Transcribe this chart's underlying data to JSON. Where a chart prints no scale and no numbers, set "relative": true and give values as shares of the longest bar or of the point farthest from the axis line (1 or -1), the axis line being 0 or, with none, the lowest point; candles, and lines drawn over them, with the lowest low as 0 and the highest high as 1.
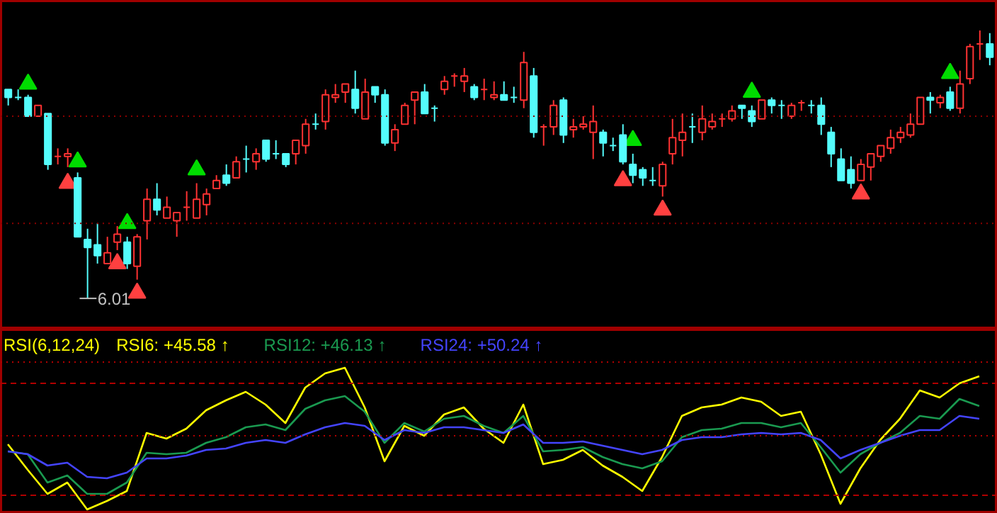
{
  "chart_data": [
    {
      "type": "candlestick",
      "relative": true,
      "categories": [
        null,
        null,
        null,
        null,
        null,
        null,
        null,
        null,
        null,
        null,
        null,
        null,
        null,
        null,
        null,
        null,
        null,
        null,
        null,
        null,
        null,
        null,
        null,
        null,
        null,
        null,
        null,
        null,
        null,
        null,
        null,
        null,
        null,
        null,
        null,
        null,
        null,
        null,
        null,
        null,
        null,
        null,
        null,
        null,
        null,
        null,
        null,
        null,
        null,
        null,
        null,
        null,
        null,
        null,
        null,
        null,
        null,
        null,
        null,
        null,
        null,
        null,
        null,
        null,
        null,
        null,
        null,
        null,
        null,
        null,
        null,
        null,
        null,
        null,
        null,
        null,
        null,
        null,
        null,
        null,
        null,
        null,
        null,
        null,
        null,
        null,
        null,
        null,
        null,
        null,
        null,
        null,
        null,
        null,
        null,
        null,
        null,
        null,
        null,
        null
      ],
      "ohlc": [
        [
          0.78,
          0.78,
          0.72,
          0.75
        ],
        [
          0.75,
          0.78,
          0.74,
          0.75
        ],
        [
          0.75,
          0.76,
          0.68,
          0.68
        ],
        [
          0.68,
          0.72,
          0.68,
          0.72
        ],
        [
          0.69,
          0.69,
          0.48,
          0.5
        ],
        [
          0.53,
          0.56,
          0.5,
          0.53
        ],
        [
          0.53,
          0.56,
          0.49,
          0.54
        ],
        [
          0.45,
          0.47,
          0.23,
          0.23
        ],
        [
          0.22,
          0.26,
          0,
          0.19
        ],
        [
          0.2,
          0.28,
          0.13,
          0.16
        ],
        [
          0.13,
          0.23,
          0.13,
          0.17
        ],
        [
          0.21,
          0.27,
          0.18,
          0.24
        ],
        [
          0.21,
          0.23,
          0.11,
          0.13
        ],
        [
          0.12,
          0.24,
          0.07,
          0.23
        ],
        [
          0.29,
          0.41,
          0.22,
          0.37
        ],
        [
          0.37,
          0.43,
          0.31,
          0.33
        ],
        [
          0.3,
          0.38,
          0.3,
          0.34
        ],
        [
          0.29,
          0.32,
          0.23,
          0.32
        ],
        [
          0.34,
          0.4,
          0.29,
          0.34
        ],
        [
          0.3,
          0.43,
          0.3,
          0.37
        ],
        [
          0.35,
          0.41,
          0.31,
          0.39
        ],
        [
          0.41,
          0.46,
          0.41,
          0.44
        ],
        [
          0.46,
          0.5,
          0.42,
          0.43
        ],
        [
          0.45,
          0.53,
          0.45,
          0.51
        ],
        [
          0.52,
          0.57,
          0.47,
          0.52
        ],
        [
          0.51,
          0.56,
          0.48,
          0.54
        ],
        [
          0.59,
          0.59,
          0.51,
          0.52
        ],
        [
          0.54,
          0.59,
          0.52,
          0.54
        ],
        [
          0.54,
          0.54,
          0.49,
          0.5
        ],
        [
          0.54,
          0.59,
          0.5,
          0.59
        ],
        [
          0.57,
          0.67,
          0.54,
          0.65
        ],
        [
          0.65,
          0.69,
          0.63,
          0.65
        ],
        [
          0.66,
          0.78,
          0.63,
          0.76
        ],
        [
          0.75,
          0.8,
          0.73,
          0.76
        ],
        [
          0.77,
          0.8,
          0.73,
          0.8
        ],
        [
          0.78,
          0.85,
          0.69,
          0.71
        ],
        [
          0.67,
          0.82,
          0.67,
          0.77
        ],
        [
          0.79,
          0.79,
          0.73,
          0.76
        ],
        [
          0.76,
          0.78,
          0.57,
          0.58
        ],
        [
          0.58,
          0.65,
          0.55,
          0.63
        ],
        [
          0.65,
          0.73,
          0.65,
          0.72
        ],
        [
          0.74,
          0.77,
          0.65,
          0.77
        ],
        [
          0.77,
          0.8,
          0.69,
          0.69
        ],
        [
          0.71,
          0.72,
          0.66,
          0.71
        ],
        [
          0.78,
          0.83,
          0.76,
          0.81
        ],
        [
          0.83,
          0.84,
          0.79,
          0.83
        ],
        [
          0.81,
          0.86,
          0.77,
          0.83
        ],
        [
          0.79,
          0.8,
          0.74,
          0.75
        ],
        [
          0.78,
          0.82,
          0.74,
          0.78
        ],
        [
          0.75,
          0.81,
          0.74,
          0.76
        ],
        [
          0.76,
          0.81,
          0.74,
          0.74
        ],
        [
          0.75,
          0.79,
          0.73,
          0.75
        ],
        [
          0.74,
          0.92,
          0.71,
          0.88
        ],
        [
          0.83,
          0.86,
          0.6,
          0.62
        ],
        [
          0.64,
          0.65,
          0.57,
          0.64
        ],
        [
          0.64,
          0.74,
          0.61,
          0.72
        ],
        [
          0.74,
          0.75,
          0.58,
          0.61
        ],
        [
          0.63,
          0.67,
          0.6,
          0.64
        ],
        [
          0.64,
          0.68,
          0.63,
          0.65
        ],
        [
          0.62,
          0.72,
          0.52,
          0.66
        ],
        [
          0.62,
          0.63,
          0.53,
          0.58
        ],
        [
          0.57,
          0.6,
          0.55,
          0.57
        ],
        [
          0.61,
          0.65,
          0.5,
          0.51
        ],
        [
          0.5,
          0.54,
          0.43,
          0.46
        ],
        [
          0.48,
          0.49,
          0.42,
          0.45
        ],
        [
          0.44,
          0.49,
          0.42,
          0.44
        ],
        [
          0.42,
          0.51,
          0.38,
          0.5
        ],
        [
          0.54,
          0.67,
          0.5,
          0.6
        ],
        [
          0.59,
          0.69,
          0.53,
          0.62
        ],
        [
          0.64,
          0.69,
          0.58,
          0.64
        ],
        [
          0.62,
          0.72,
          0.59,
          0.67
        ],
        [
          0.64,
          0.69,
          0.63,
          0.66
        ],
        [
          0.67,
          0.69,
          0.64,
          0.67
        ],
        [
          0.67,
          0.72,
          0.66,
          0.7
        ],
        [
          0.72,
          0.72,
          0.67,
          0.71
        ],
        [
          0.7,
          0.72,
          0.64,
          0.66
        ],
        [
          0.67,
          0.74,
          0.67,
          0.74
        ],
        [
          0.74,
          0.75,
          0.69,
          0.72
        ],
        [
          0.72,
          0.74,
          0.67,
          0.72
        ],
        [
          0.68,
          0.73,
          0.67,
          0.72
        ],
        [
          0.73,
          0.74,
          0.7,
          0.73
        ],
        [
          0.72,
          0.74,
          0.69,
          0.72
        ],
        [
          0.72,
          0.75,
          0.61,
          0.65
        ],
        [
          0.62,
          0.64,
          0.49,
          0.54
        ],
        [
          0.52,
          0.56,
          0.44,
          0.44
        ],
        [
          0.48,
          0.53,
          0.41,
          0.43
        ],
        [
          0.44,
          0.52,
          0.44,
          0.5
        ],
        [
          0.49,
          0.54,
          0.44,
          0.54
        ],
        [
          0.53,
          0.57,
          0.51,
          0.57
        ],
        [
          0.56,
          0.63,
          0.54,
          0.6
        ],
        [
          0.6,
          0.64,
          0.58,
          0.62
        ],
        [
          0.61,
          0.69,
          0.6,
          0.65
        ],
        [
          0.65,
          0.75,
          0.65,
          0.75
        ],
        [
          0.75,
          0.77,
          0.69,
          0.74
        ],
        [
          0.73,
          0.76,
          0.71,
          0.75
        ],
        [
          0.77,
          0.79,
          0.7,
          0.71
        ],
        [
          0.71,
          0.85,
          0.69,
          0.8
        ],
        [
          0.82,
          0.95,
          0.8,
          0.94
        ],
        [
          0.95,
          1,
          0.89,
          0.95
        ],
        [
          0.95,
          0.99,
          0.87,
          0.9
        ]
      ],
      "colors": [
        "#54fcfc",
        "#54fcfc",
        "#54fcfc",
        "#ff3232",
        "#54fcfc",
        "#ff3232",
        "#ff3232",
        "#54fcfc",
        "#54fcfc",
        "#54fcfc",
        "#ff3232",
        "#ff3232",
        "#54fcfc",
        "#ff3232",
        "#ff3232",
        "#54fcfc",
        "#ff3232",
        "#ff3232",
        "#ff3232",
        "#ff3232",
        "#ff3232",
        "#ff3232",
        "#54fcfc",
        "#ff3232",
        "#54fcfc",
        "#ff3232",
        "#54fcfc",
        "#54fcfc",
        "#54fcfc",
        "#ff3232",
        "#ff3232",
        "#54fcfc",
        "#ff3232",
        "#ff3232",
        "#ff3232",
        "#54fcfc",
        "#ff3232",
        "#54fcfc",
        "#54fcfc",
        "#ff3232",
        "#ff3232",
        "#ff3232",
        "#54fcfc",
        "#54fcfc",
        "#ff3232",
        "#ff3232",
        "#ff3232",
        "#54fcfc",
        "#ff3232",
        "#ff3232",
        "#54fcfc",
        "#54fcfc",
        "#ff3232",
        "#54fcfc",
        "#ff3232",
        "#ff3232",
        "#54fcfc",
        "#ff3232",
        "#ff3232",
        "#ff3232",
        "#54fcfc",
        "#54fcfc",
        "#54fcfc",
        "#54fcfc",
        "#54fcfc",
        "#54fcfc",
        "#ff3232",
        "#ff3232",
        "#ff3232",
        "#54fcfc",
        "#ff3232",
        "#ff3232",
        "#ff3232",
        "#ff3232",
        "#54fcfc",
        "#54fcfc",
        "#ff3232",
        "#54fcfc",
        "#54fcfc",
        "#ff3232",
        "#ff3232",
        "#54fcfc",
        "#54fcfc",
        "#54fcfc",
        "#54fcfc",
        "#54fcfc",
        "#ff3232",
        "#ff3232",
        "#ff3232",
        "#ff3232",
        "#ff3232",
        "#ff3232",
        "#ff3232",
        "#54fcfc",
        "#ff3232",
        "#54fcfc",
        "#ff3232",
        "#ff3232",
        "#ff3232",
        "#54fcfc"
      ],
      "series": [
        {
          "type": "scatter",
          "marker": "triangle",
          "color": "#00dd00",
          "values": [
            null,
            null,
            0.8,
            null,
            null,
            null,
            null,
            0.51,
            null,
            null,
            null,
            null,
            0.28,
            null,
            null,
            null,
            null,
            null,
            null,
            0.48,
            null,
            null,
            null,
            null,
            null,
            null,
            null,
            null,
            null,
            null,
            null,
            null,
            null,
            null,
            null,
            null,
            null,
            null,
            null,
            null,
            null,
            null,
            null,
            null,
            null,
            null,
            null,
            null,
            null,
            null,
            null,
            null,
            null,
            null,
            null,
            null,
            null,
            null,
            null,
            null,
            null,
            null,
            null,
            0.59,
            null,
            null,
            null,
            null,
            null,
            null,
            null,
            null,
            null,
            null,
            null,
            0.77,
            null,
            null,
            null,
            null,
            null,
            null,
            null,
            null,
            null,
            null,
            null,
            null,
            null,
            null,
            null,
            null,
            null,
            null,
            null,
            0.84,
            null,
            null,
            null,
            null
          ]
        },
        {
          "type": "scatter",
          "marker": "triangle",
          "color": "#ff4040",
          "values": [
            null,
            null,
            null,
            null,
            null,
            null,
            0.43,
            null,
            null,
            null,
            null,
            0.13,
            null,
            0.02,
            null,
            null,
            null,
            null,
            null,
            null,
            null,
            null,
            null,
            null,
            null,
            null,
            null,
            null,
            null,
            null,
            null,
            null,
            null,
            null,
            null,
            null,
            null,
            null,
            null,
            null,
            null,
            null,
            null,
            null,
            null,
            null,
            null,
            null,
            null,
            null,
            null,
            null,
            null,
            null,
            null,
            null,
            null,
            null,
            null,
            null,
            null,
            null,
            0.44,
            null,
            null,
            null,
            0.33,
            null,
            null,
            null,
            null,
            null,
            null,
            null,
            null,
            null,
            null,
            null,
            null,
            null,
            null,
            null,
            null,
            null,
            null,
            null,
            0.39,
            null,
            null,
            null,
            null,
            null,
            null,
            null,
            null,
            null,
            null,
            null,
            null,
            null
          ]
        }
      ],
      "ref_lines": [
        {
          "axis": "y",
          "value": 0.68,
          "color": "#8b0000",
          "line_style": "dotted"
        },
        {
          "axis": "y",
          "value": 0.28,
          "color": "#8b0000",
          "line_style": "dotted"
        }
      ],
      "annotations": [
        "6.01"
      ]
    },
    {
      "type": "line",
      "relative": true,
      "title": "RSI(6,12,24)",
      "legend": "top left",
      "categories": [
        null,
        null,
        null,
        null,
        null,
        null,
        null,
        null,
        null,
        null,
        null,
        null,
        null,
        null,
        null,
        null,
        null,
        null,
        null,
        null,
        null,
        null,
        null,
        null,
        null,
        null,
        null,
        null,
        null,
        null,
        null,
        null,
        null,
        null,
        null,
        null,
        null,
        null,
        null,
        null,
        null,
        null,
        null,
        null,
        null,
        null,
        null,
        null,
        null,
        null
      ],
      "series": [
        {
          "name": "RSI6: +45.58 ↑",
          "color": "#ffff00",
          "values": [
            0.46,
            0.28,
            0.11,
            0.19,
            0,
            0.06,
            0.13,
            0.54,
            0.5,
            0.57,
            0.7,
            0.77,
            0.83,
            0.74,
            0.61,
            0.86,
            0.96,
            1,
            0.72,
            0.34,
            0.59,
            0.52,
            0.67,
            0.72,
            0.57,
            0.47,
            0.74,
            0.32,
            0.35,
            0.42,
            0.31,
            0.23,
            0.13,
            0.37,
            0.66,
            0.72,
            0.74,
            0.79,
            0.76,
            0.66,
            0.69,
            0.39,
            0.04,
            0.29,
            0.49,
            0.64,
            0.84,
            0.79,
            0.89,
            0.94
          ]
        },
        {
          "name": "RSI12: +46.13 ↑",
          "color": "#1a9a50",
          "values": [
            0.41,
            0.39,
            0.19,
            0.24,
            0.11,
            0.11,
            0.19,
            0.4,
            0.39,
            0.4,
            0.47,
            0.51,
            0.58,
            0.6,
            0.56,
            0.71,
            0.77,
            0.8,
            0.69,
            0.47,
            0.61,
            0.55,
            0.64,
            0.66,
            0.59,
            0.54,
            0.66,
            0.41,
            0.42,
            0.44,
            0.37,
            0.32,
            0.29,
            0.34,
            0.51,
            0.56,
            0.57,
            0.61,
            0.61,
            0.58,
            0.61,
            0.44,
            0.26,
            0.39,
            0.47,
            0.54,
            0.66,
            0.64,
            0.78,
            0.73
          ]
        },
        {
          "name": "RSI24: +50.24 ↑",
          "color": "#4444ff",
          "values": [
            0.41,
            0.39,
            0.31,
            0.33,
            0.23,
            0.22,
            0.26,
            0.36,
            0.36,
            0.38,
            0.42,
            0.43,
            0.47,
            0.49,
            0.47,
            0.53,
            0.58,
            0.61,
            0.59,
            0.49,
            0.56,
            0.54,
            0.58,
            0.58,
            0.56,
            0.54,
            0.6,
            0.47,
            0.47,
            0.48,
            0.45,
            0.42,
            0.39,
            0.42,
            0.49,
            0.51,
            0.51,
            0.53,
            0.54,
            0.53,
            0.54,
            0.49,
            0.36,
            0.42,
            0.47,
            0.52,
            0.56,
            0.56,
            0.66,
            0.64
          ]
        }
      ],
      "ref_lines": [
        {
          "axis": "y",
          "value": 1.04,
          "color": "#b00000",
          "line_style": "dotted"
        },
        {
          "axis": "y",
          "value": 0.89,
          "color": "#b00000",
          "line_style": "dashed"
        },
        {
          "axis": "y",
          "value": 0.52,
          "color": "#b00000",
          "line_style": "dotted"
        },
        {
          "axis": "y",
          "value": 0.1,
          "color": "#b00000",
          "line_style": "dashed"
        }
      ]
    }
  ]
}
